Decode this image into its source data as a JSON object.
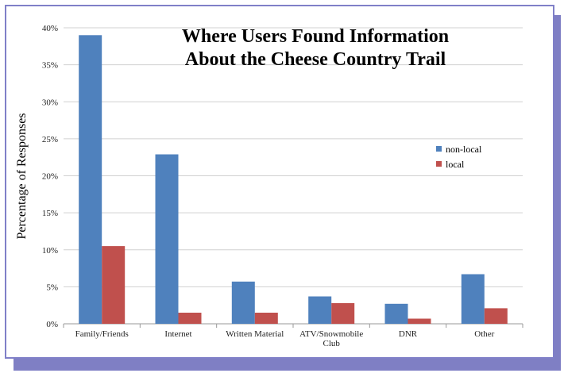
{
  "chart_data": {
    "type": "bar",
    "title_lines": [
      "Where Users Found Information",
      "About the Cheese Country Trail"
    ],
    "ylabel": "Percentage of Responses",
    "xlabel": "",
    "categories": [
      [
        "Family/Friends"
      ],
      [
        "Internet"
      ],
      [
        "Written Material"
      ],
      [
        "ATV/Snowmobile",
        "Club"
      ],
      [
        "DNR"
      ],
      [
        "Other"
      ]
    ],
    "series": [
      {
        "name": "non-local",
        "color": "#4f81bd",
        "values": [
          39.0,
          22.9,
          5.7,
          3.7,
          2.7,
          6.7
        ]
      },
      {
        "name": "local",
        "color": "#c0504d",
        "values": [
          10.5,
          1.5,
          1.5,
          2.8,
          0.7,
          2.1
        ]
      }
    ],
    "ylim": [
      0,
      40
    ],
    "yticks": [
      {
        "value": 0,
        "label": "0%"
      },
      {
        "value": 5,
        "label": "5%"
      },
      {
        "value": 10,
        "label": "10%"
      },
      {
        "value": 15,
        "label": "15%"
      },
      {
        "value": 20,
        "label": "20%"
      },
      {
        "value": 25,
        "label": "25%"
      },
      {
        "value": 30,
        "label": "30%"
      },
      {
        "value": 35,
        "label": "35%"
      },
      {
        "value": 40,
        "label": "40%"
      }
    ],
    "grid": true,
    "legend_position": "right"
  }
}
